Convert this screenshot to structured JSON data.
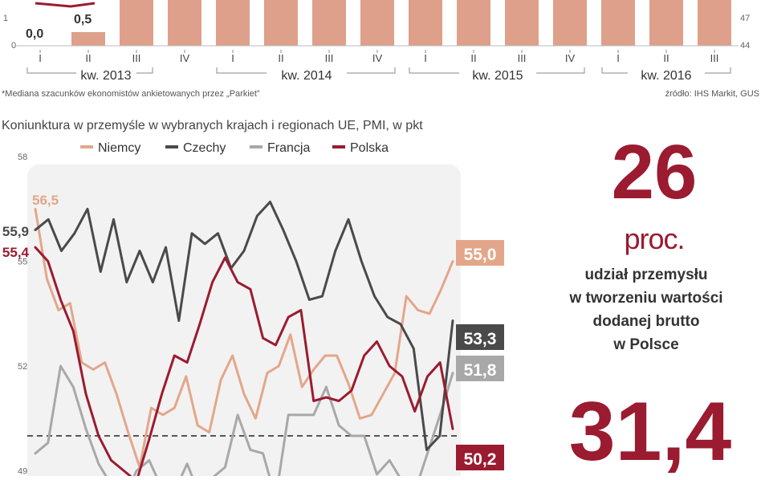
{
  "top_chart": {
    "y_left_ticks": [
      "1",
      "0"
    ],
    "y_right_ticks": [
      "47",
      "44"
    ],
    "value_labels": [
      "0,0",
      "0,5"
    ],
    "quarters": [
      "I",
      "II",
      "III",
      "IV",
      "I",
      "II",
      "III",
      "IV",
      "I",
      "II",
      "III",
      "IV",
      "I",
      "II",
      "III"
    ],
    "year_groups": [
      "kw. 2013",
      "kw. 2014",
      "kw. 2015",
      "kw. 2016"
    ],
    "footnote": "*Mediana szacunków ekonomistów ankietowanych przez „Parkiet”",
    "source": "źródło: IHS Markit, GUS"
  },
  "colors": {
    "niemcy": "#e4a68a",
    "czechy": "#4a4a4a",
    "francja": "#a8a8a8",
    "polska": "#9b1b30",
    "bar_fill": "#dea08a",
    "panel_bg": "#f2f2f2"
  },
  "chart_data": {
    "type": "line",
    "title": "Koniunktura w przemyśle w wybranych krajach i regionach UE, PMI, w pkt",
    "yticks": [
      "58",
      "55",
      "52",
      "49"
    ],
    "ylim": [
      48.7,
      58.3
    ],
    "reference_line": 50,
    "legend_position": "top",
    "series": [
      {
        "name": "Niemcy",
        "start_label": "56,5",
        "end_label": "55,0",
        "values": [
          56.5,
          54.5,
          53.6,
          53.8,
          52.1,
          51.9,
          52.1,
          51.2,
          50.1,
          49.1,
          50.8,
          50.6,
          50.8,
          51.7,
          50.3,
          50.1,
          51.6,
          52.3,
          51.2,
          50.5,
          51.8,
          52.0,
          52.9,
          51.4,
          51.9,
          52.3,
          52.3,
          51.5,
          50.5,
          50.6,
          51.2,
          51.8,
          54.0,
          53.6,
          53.5,
          54.2,
          55.0
        ]
      },
      {
        "name": "Czechy",
        "start_label": "55,9",
        "end_label": "53,3",
        "values": [
          55.9,
          56.2,
          55.3,
          55.8,
          56.5,
          54.7,
          56.2,
          54.4,
          55.3,
          54.4,
          55.4,
          53.3,
          55.8,
          55.5,
          55.8,
          54.8,
          55.3,
          56.3,
          56.7,
          55.9,
          55.0,
          53.9,
          54.0,
          55.3,
          56.2,
          55.0,
          54.0,
          53.4,
          53.2,
          52.5,
          49.6,
          50.0,
          53.3
        ]
      },
      {
        "name": "Francja",
        "end_label": "51,8",
        "values": [
          49.5,
          49.8,
          52.0,
          51.4,
          50.2,
          49.2,
          48.6,
          48.2,
          49.0,
          49.3,
          48.5,
          48.4,
          49.2,
          48.3,
          48.8,
          49.1,
          50.6,
          49.6,
          49.5,
          48.2,
          50.6,
          50.6,
          50.6,
          51.4,
          50.3,
          50.0,
          50.0,
          48.9,
          49.3,
          48.7,
          48.4,
          49.5,
          50.6,
          51.8
        ]
      },
      {
        "name": "Polska",
        "start_label": "55,4",
        "end_label": "50,2",
        "values": [
          55.4,
          55.0,
          53.9,
          53.0,
          51.2,
          50.0,
          49.3,
          49.0,
          48.7,
          49.9,
          51.2,
          52.3,
          52.1,
          53.2,
          54.4,
          55.1,
          54.4,
          54.2,
          52.8,
          52.6,
          53.4,
          53.6,
          51.0,
          51.1,
          51.0,
          51.3,
          52.3,
          52.7,
          52.0,
          51.7,
          50.7,
          51.7,
          52.1,
          50.2
        ]
      }
    ]
  },
  "stats": {
    "stat1_value": "26",
    "stat1_unit": "proc.",
    "stat1_desc": [
      "udział przemysłu",
      "w tworzeniu wartości",
      "dodanej brutto",
      "w Polsce"
    ],
    "stat2_value": "31,4"
  }
}
